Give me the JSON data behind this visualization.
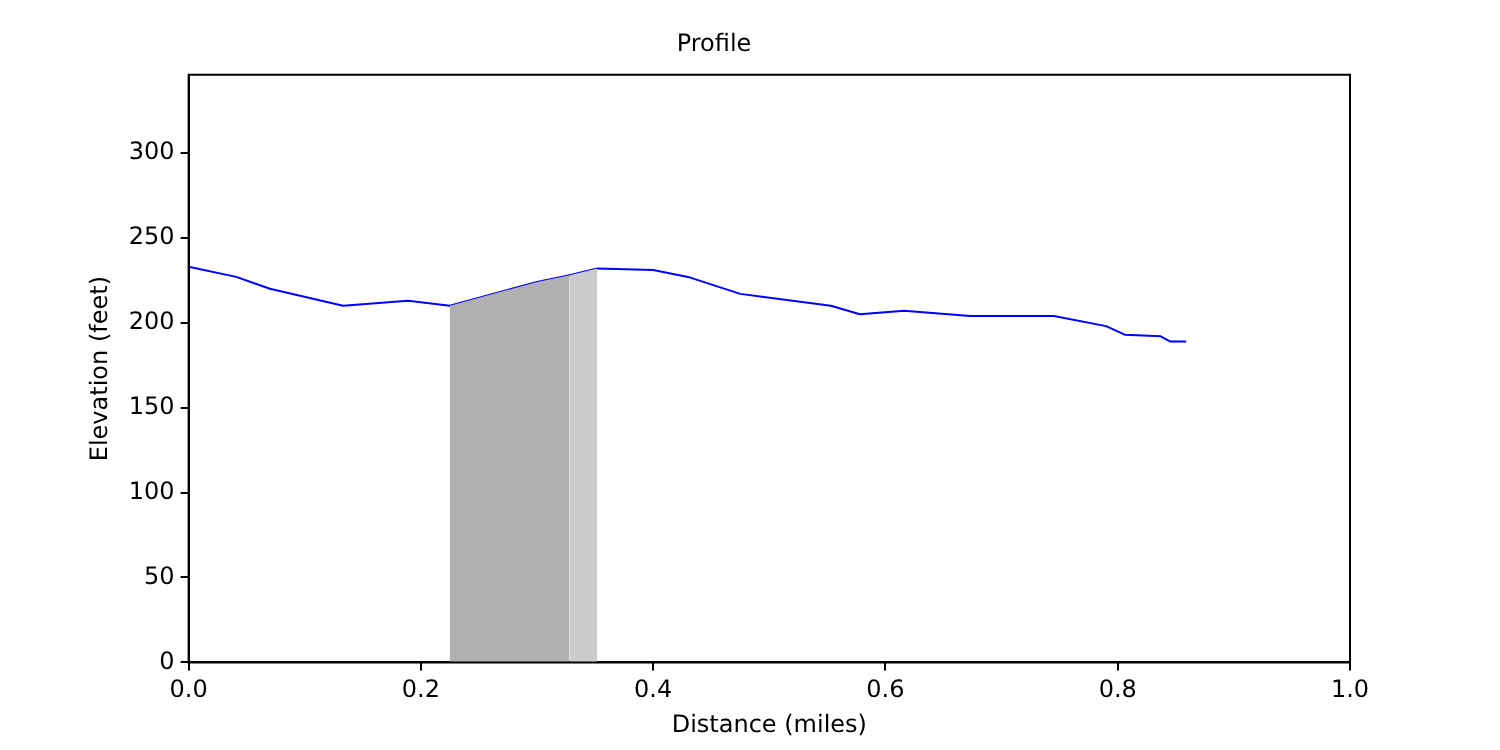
{
  "chart_data": {
    "type": "line",
    "title": "Profile",
    "xlabel": "Distance (miles)",
    "ylabel": "Elevation (feet)",
    "xlim": [
      0,
      1
    ],
    "xticks": [
      {
        "value": 0,
        "label": "0.0"
      },
      {
        "value": 0.2,
        "label": "0.2"
      },
      {
        "value": 0.4,
        "label": "0.4"
      },
      {
        "value": 0.6,
        "label": "0.6"
      },
      {
        "value": 0.8,
        "label": "0.8"
      },
      {
        "value": 1,
        "label": "1.0"
      }
    ],
    "ylim": [
      0,
      346
    ],
    "yticks": [
      0,
      50,
      100,
      150,
      200,
      250,
      300
    ],
    "grid": false,
    "legend": false,
    "series": [
      {
        "type": "area",
        "color": "#b0b0b0",
        "x": [
          0.225,
          0.3,
          0.328
        ],
        "values": [
          210,
          224,
          228
        ]
      },
      {
        "type": "area",
        "color": "#cccccc",
        "x": [
          0.328,
          0.352
        ],
        "values": [
          228,
          232
        ]
      },
      {
        "color": "#0000ff",
        "x": [
          0,
          0.041,
          0.07,
          0.133,
          0.189,
          0.225,
          0.3,
          0.328,
          0.352,
          0.4,
          0.43,
          0.475,
          0.553,
          0.578,
          0.616,
          0.673,
          0.745,
          0.79,
          0.806,
          0.837,
          0.845,
          0.859
        ],
        "values": [
          233,
          227,
          220,
          210,
          213,
          210,
          224,
          228,
          232,
          231,
          227,
          217,
          210,
          205,
          207,
          204,
          204,
          198,
          193,
          192,
          189,
          189
        ]
      }
    ]
  }
}
